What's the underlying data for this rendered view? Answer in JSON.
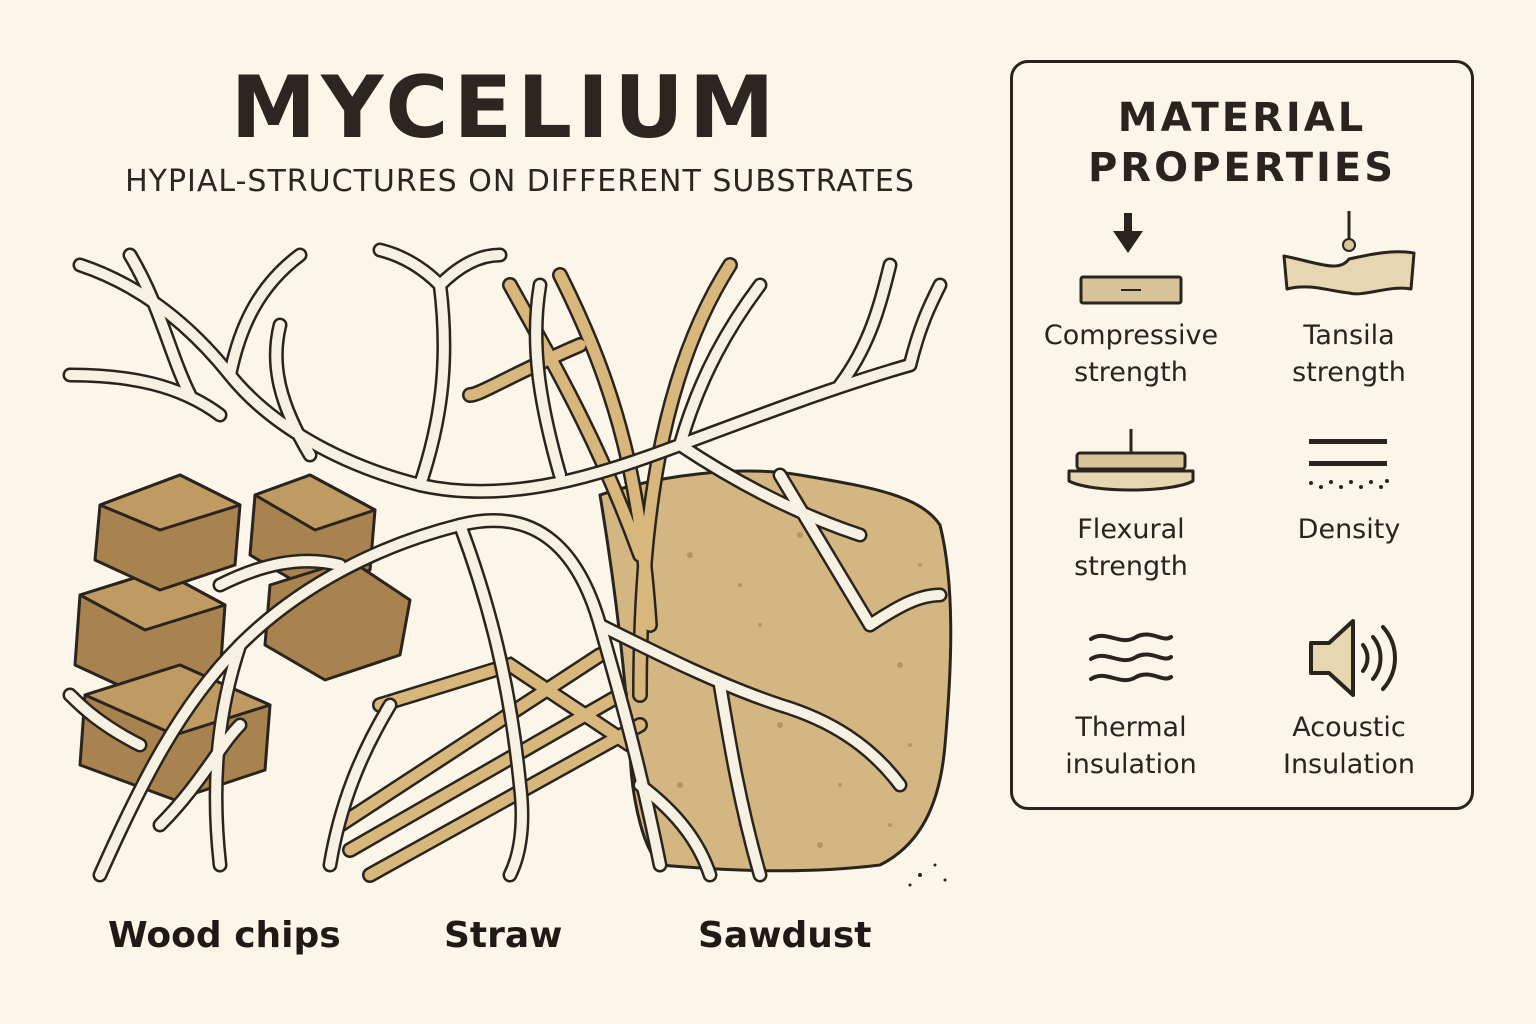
{
  "title": "MYCELIUM",
  "subtitle": "HYPIAL-STRUCTURES ON DIFFERENT SUBSTRATES",
  "substrates": [
    "Wood chips",
    "Straw",
    "Sawdust"
  ],
  "properties_panel": {
    "title_line1": "MATERIAL",
    "title_line2": "PROPERTIES",
    "items": [
      {
        "label": "Compressive\nstrength",
        "icon": "compression-icon"
      },
      {
        "label": "Tansila\nstrength",
        "icon": "tensile-icon"
      },
      {
        "label": "Flexural\nstrength",
        "icon": "flexural-icon"
      },
      {
        "label": "Density",
        "icon": "density-icon"
      },
      {
        "label": "Thermal\ninsulation",
        "icon": "thermal-icon"
      },
      {
        "label": "Acoustic\nInsulation",
        "icon": "acoustic-icon"
      }
    ]
  },
  "colors": {
    "background": "#fbf6e9",
    "ink": "#2a241e",
    "wood": "#a8824f",
    "straw": "#d8b77c",
    "sawdust": "#d3b682",
    "hyphae": "#f7f1e3"
  }
}
